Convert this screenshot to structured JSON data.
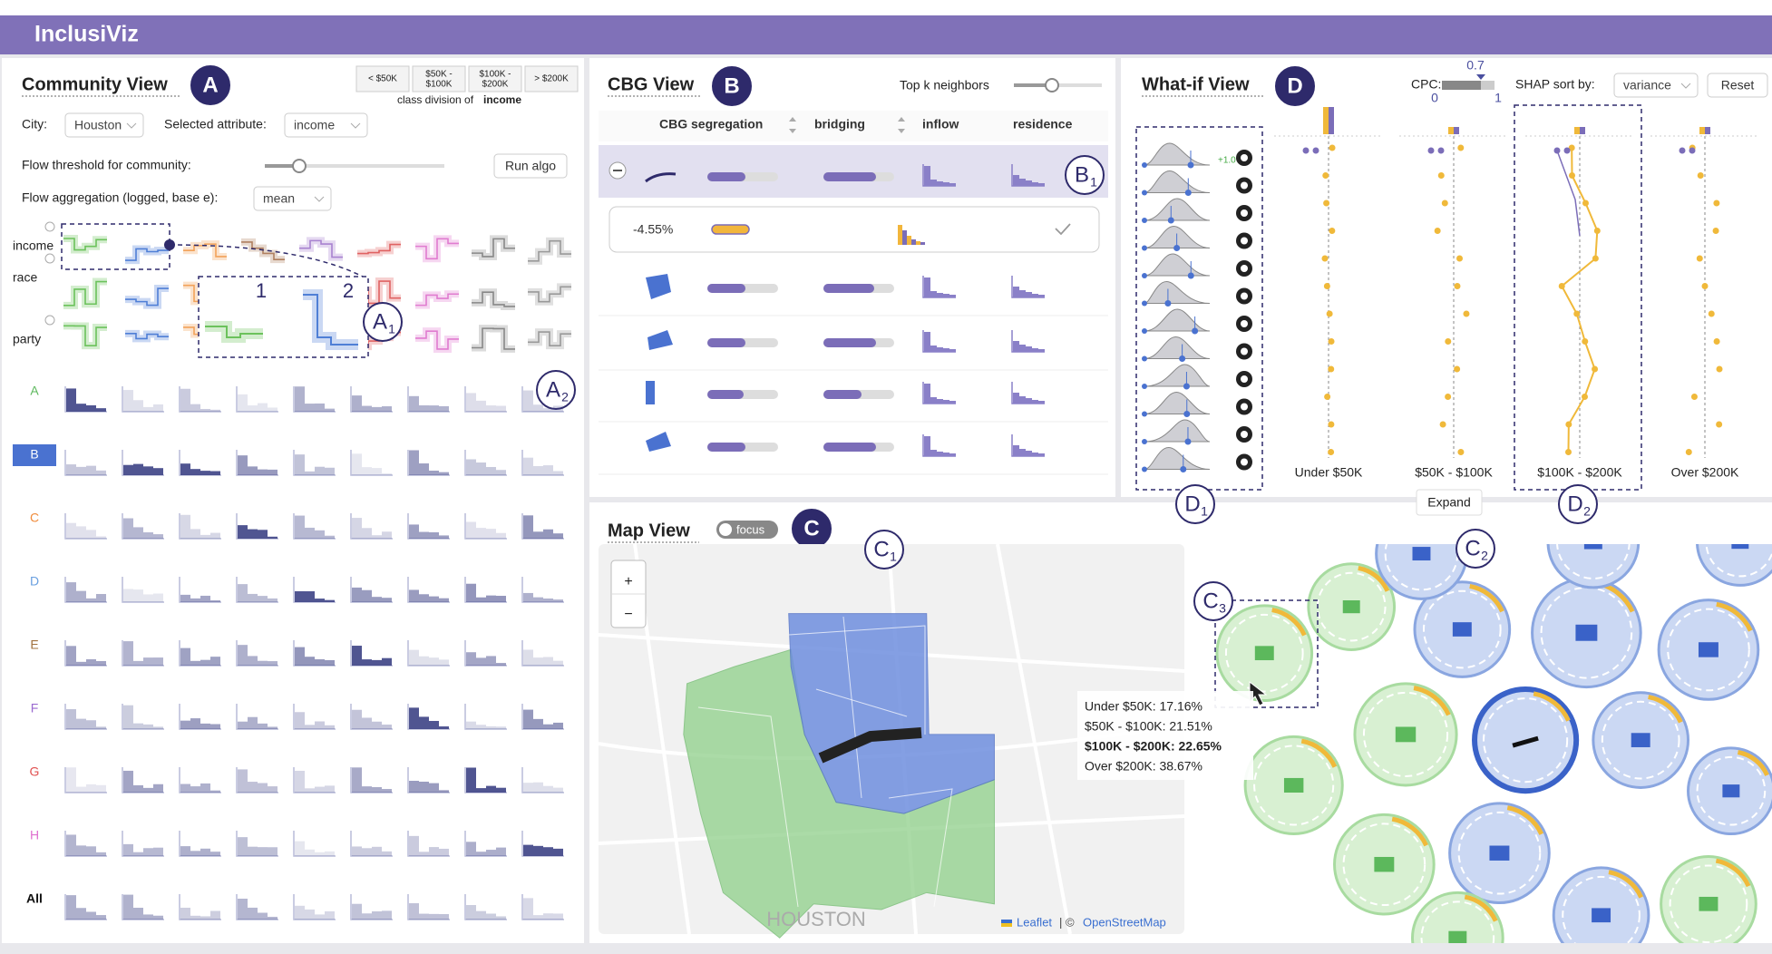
{
  "header": {
    "title": "InclusiViz"
  },
  "community_view": {
    "title": "Community View",
    "badge": "A",
    "class_divisions": [
      [
        "< $50K"
      ],
      [
        "$50K -",
        "$100K"
      ],
      [
        "$100K -",
        "$200K"
      ],
      [
        "> $200K"
      ]
    ],
    "caption": "class division of",
    "caption_attribute": "income",
    "city_label": "City:",
    "city": "Houston",
    "attribute_label": "Selected attribute:",
    "attribute": "income",
    "flow_threshold_label": "Flow threshold for community:",
    "run_button": "Run algo",
    "aggregation_label": "Flow aggregation (logged, base e):",
    "aggregation": "mean",
    "attribute_rows": [
      "income",
      "race",
      "party"
    ],
    "callouts": [
      "1",
      "2"
    ],
    "badge_a1": {
      "letter": "A",
      "sub": "1"
    },
    "badge_a2": {
      "letter": "A",
      "sub": "2"
    },
    "communities": [
      "A",
      "B",
      "C",
      "D",
      "E",
      "F",
      "G",
      "H",
      "All"
    ]
  },
  "cbg_view": {
    "title": "CBG View",
    "badge": "B",
    "top_k_label": "Top k neighbors",
    "columns": [
      "CBG",
      "segregation",
      "bridging",
      "inflow",
      "residence"
    ],
    "expanded_change": "-4.55%",
    "badge_b1": {
      "letter": "B",
      "sub": "1"
    }
  },
  "what_if_view": {
    "title": "What-if View",
    "badge": "D",
    "cpc_label": "CPC:",
    "cpc_value": "0.7",
    "cpc_min": "0",
    "cpc_max": "1",
    "shap_label": "SHAP sort by:",
    "shap_sort": "variance",
    "reset_button": "Reset",
    "shift_label": "+1.0",
    "income_classes": [
      "Under $50K",
      "$50K - $100K",
      "$100K - $200K",
      "Over $200K"
    ],
    "expand_tooltip": "Expand",
    "badge_d1": {
      "letter": "D",
      "sub": "1"
    },
    "badge_d2": {
      "letter": "D",
      "sub": "2"
    }
  },
  "map_view": {
    "title": "Map View",
    "focus_toggle": "focus",
    "badge": "C",
    "zoom_in": "+",
    "zoom_out": "−",
    "city_label": "HOUSTON",
    "attribution_leaflet": "Leaflet",
    "attribution_sep": "| ©",
    "attribution_osm": "OpenStreetMap",
    "tooltip": [
      "Under $50K: 17.16%",
      "$50K - $100K: 21.51%",
      "$100K - $200K: 22.65%",
      "Over $200K: 38.67%"
    ],
    "badge_c1": {
      "letter": "C",
      "sub": "1"
    },
    "badge_c2": {
      "letter": "C",
      "sub": "2"
    },
    "badge_c3": {
      "letter": "C",
      "sub": "3"
    }
  }
}
